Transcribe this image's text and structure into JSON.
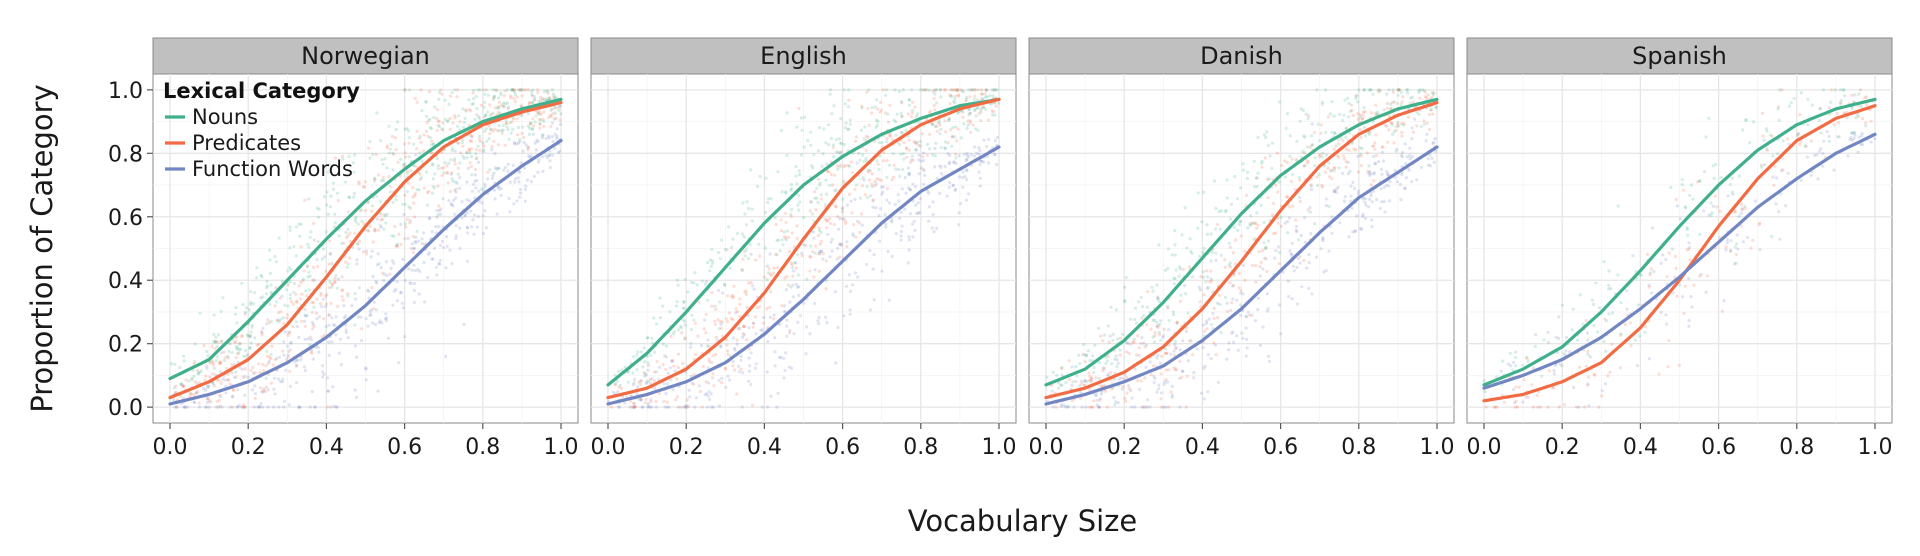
{
  "chart_data": {
    "type": "scatter",
    "xlabel": "Vocabulary Size",
    "ylabel": "Proportion of Category",
    "xlim": [
      0,
      1
    ],
    "ylim": [
      -0.05,
      1.05
    ],
    "x_ticks": [
      "0.0",
      "0.2",
      "0.4",
      "0.6",
      "0.8",
      "1.0"
    ],
    "y_ticks": [
      "0.0",
      "0.2",
      "0.4",
      "0.6",
      "0.8",
      "1.0"
    ],
    "grid": true,
    "legend": {
      "title": "Lexical Category",
      "placement": "top-left inside first panel",
      "entries": [
        "Nouns",
        "Predicates",
        "Function Words"
      ]
    },
    "colors": {
      "Nouns": "#3fb08b",
      "Predicates": "#f26b43",
      "Function Words": "#7186c2"
    },
    "x": [
      0.0,
      0.1,
      0.2,
      0.3,
      0.4,
      0.5,
      0.6,
      0.7,
      0.8,
      0.9,
      1.0
    ],
    "panels": [
      {
        "name": "Norwegian",
        "point_density": 1.0,
        "series": [
          {
            "name": "Nouns",
            "values": [
              0.09,
              0.15,
              0.27,
              0.4,
              0.53,
              0.65,
              0.75,
              0.84,
              0.9,
              0.94,
              0.97
            ]
          },
          {
            "name": "Predicates",
            "values": [
              0.03,
              0.08,
              0.15,
              0.26,
              0.41,
              0.57,
              0.71,
              0.82,
              0.89,
              0.93,
              0.96
            ]
          },
          {
            "name": "Function Words",
            "values": [
              0.01,
              0.04,
              0.08,
              0.14,
              0.22,
              0.32,
              0.44,
              0.56,
              0.67,
              0.76,
              0.84
            ]
          }
        ]
      },
      {
        "name": "English",
        "point_density": 0.85,
        "series": [
          {
            "name": "Nouns",
            "values": [
              0.07,
              0.17,
              0.3,
              0.44,
              0.58,
              0.7,
              0.79,
              0.86,
              0.91,
              0.95,
              0.97
            ]
          },
          {
            "name": "Predicates",
            "values": [
              0.03,
              0.06,
              0.12,
              0.22,
              0.36,
              0.53,
              0.69,
              0.81,
              0.89,
              0.94,
              0.97
            ]
          },
          {
            "name": "Function Words",
            "values": [
              0.01,
              0.04,
              0.08,
              0.14,
              0.23,
              0.34,
              0.46,
              0.58,
              0.68,
              0.75,
              0.82
            ]
          }
        ]
      },
      {
        "name": "Danish",
        "point_density": 0.75,
        "series": [
          {
            "name": "Nouns",
            "values": [
              0.07,
              0.12,
              0.21,
              0.33,
              0.47,
              0.61,
              0.73,
              0.82,
              0.89,
              0.94,
              0.97
            ]
          },
          {
            "name": "Predicates",
            "values": [
              0.03,
              0.06,
              0.11,
              0.19,
              0.31,
              0.46,
              0.62,
              0.76,
              0.86,
              0.92,
              0.96
            ]
          },
          {
            "name": "Function Words",
            "values": [
              0.01,
              0.04,
              0.08,
              0.13,
              0.21,
              0.31,
              0.43,
              0.55,
              0.66,
              0.74,
              0.82
            ]
          }
        ]
      },
      {
        "name": "Spanish",
        "point_density": 0.3,
        "series": [
          {
            "name": "Nouns",
            "values": [
              0.07,
              0.12,
              0.19,
              0.3,
              0.43,
              0.57,
              0.7,
              0.81,
              0.89,
              0.94,
              0.97
            ]
          },
          {
            "name": "Predicates",
            "values": [
              0.02,
              0.04,
              0.08,
              0.14,
              0.25,
              0.4,
              0.57,
              0.72,
              0.84,
              0.91,
              0.95
            ]
          },
          {
            "name": "Function Words",
            "values": [
              0.06,
              0.1,
              0.15,
              0.22,
              0.31,
              0.41,
              0.52,
              0.63,
              0.72,
              0.8,
              0.86
            ]
          }
        ]
      }
    ]
  }
}
